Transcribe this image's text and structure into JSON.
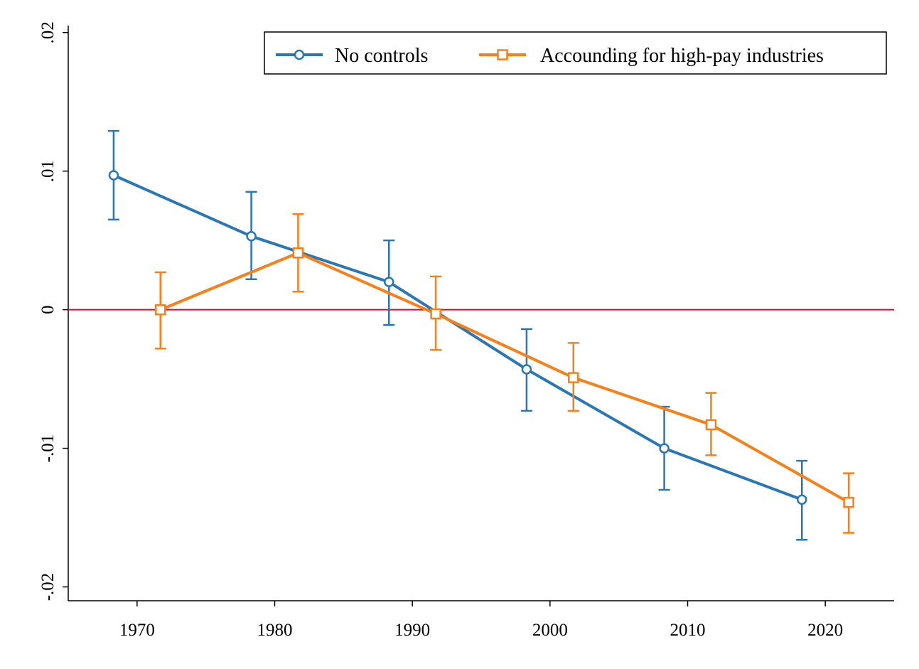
{
  "chart_data": {
    "type": "line",
    "title": "",
    "xlabel": "",
    "ylabel": "",
    "xlim": [
      1965,
      2025
    ],
    "ylim": [
      -0.021,
      0.0205
    ],
    "x_ticks": [
      {
        "value": 1970,
        "label": "1970"
      },
      {
        "value": 1980,
        "label": "1980"
      },
      {
        "value": 1990,
        "label": "1990"
      },
      {
        "value": 2000,
        "label": "2000"
      },
      {
        "value": 2010,
        "label": "2010"
      },
      {
        "value": 2020,
        "label": "2020"
      }
    ],
    "y_ticks": [
      {
        "value": 0.02,
        "label": ".02"
      },
      {
        "value": 0.01,
        "label": ".01"
      },
      {
        "value": 0,
        "label": "0"
      },
      {
        "value": -0.01,
        "label": "-.01"
      },
      {
        "value": -0.02,
        "label": "-.02"
      }
    ],
    "reference_line": {
      "y": 0,
      "color": "#c0143c"
    },
    "grid": false,
    "legend_position": "top-right",
    "series": [
      {
        "name": "No controls",
        "color": "#2a77b4",
        "marker": "circle",
        "points": [
          {
            "x": 1968.3,
            "y": 0.0097,
            "lo": 0.0065,
            "hi": 0.0129
          },
          {
            "x": 1978.3,
            "y": 0.0053,
            "lo": 0.0022,
            "hi": 0.0085
          },
          {
            "x": 1988.3,
            "y": 0.002,
            "lo": -0.0011,
            "hi": 0.005
          },
          {
            "x": 1998.3,
            "y": -0.0043,
            "lo": -0.0073,
            "hi": -0.0014
          },
          {
            "x": 2008.3,
            "y": -0.01,
            "lo": -0.013,
            "hi": -0.007
          },
          {
            "x": 2018.3,
            "y": -0.0137,
            "lo": -0.0166,
            "hi": -0.0109
          }
        ]
      },
      {
        "name": "Accounding for high-pay industries",
        "color": "#f7801a",
        "marker": "square",
        "points": [
          {
            "x": 1971.7,
            "y": 0.0,
            "lo": -0.0028,
            "hi": 0.0027
          },
          {
            "x": 1981.7,
            "y": 0.0041,
            "lo": 0.0013,
            "hi": 0.0069
          },
          {
            "x": 1991.7,
            "y": -0.0003,
            "lo": -0.0029,
            "hi": 0.0024
          },
          {
            "x": 2001.7,
            "y": -0.0049,
            "lo": -0.0073,
            "hi": -0.0024
          },
          {
            "x": 2011.7,
            "y": -0.0083,
            "lo": -0.0105,
            "hi": -0.006
          },
          {
            "x": 2021.7,
            "y": -0.0139,
            "lo": -0.0161,
            "hi": -0.0118
          }
        ]
      }
    ]
  }
}
